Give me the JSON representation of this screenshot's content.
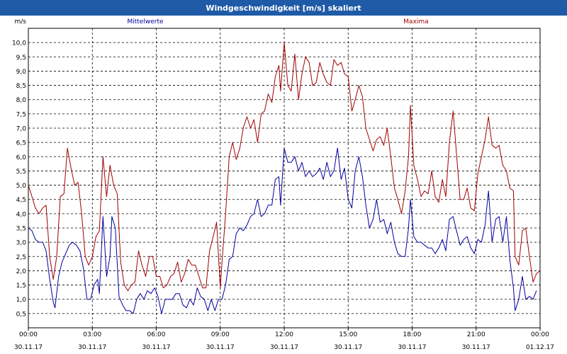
{
  "window": {
    "title": "Windgeschwindigkeit [m/s] skaliert"
  },
  "colors": {
    "titlebar": "#1f5aa6",
    "mean_series": "#0000a0",
    "max_series": "#a00000",
    "grid": "#000000",
    "text": "#000000"
  },
  "chart_data": {
    "type": "line",
    "title": "Windgeschwindigkeit [m/s] skaliert",
    "ylabel": "m/s",
    "xlabel": "",
    "ylim": [
      0,
      10.5
    ],
    "y_ticks": [
      "0,5",
      "1,0",
      "1,5",
      "2,0",
      "2,5",
      "3,0",
      "3,5",
      "4,0",
      "4,5",
      "5,0",
      "5,5",
      "6,0",
      "6,5",
      "7,0",
      "7,5",
      "8,0",
      "8,5",
      "9,0",
      "9,5",
      "10,0"
    ],
    "x_range_hours": [
      0,
      24
    ],
    "x_ticks": [
      {
        "time": "00:00",
        "date": "30.11.17"
      },
      {
        "time": "03:00",
        "date": "30.11.17"
      },
      {
        "time": "06:00",
        "date": "30.11.17"
      },
      {
        "time": "09:00",
        "date": "30.11.17"
      },
      {
        "time": "12:00",
        "date": "30.11.17"
      },
      {
        "time": "15:00",
        "date": "30.11.17"
      },
      {
        "time": "18:00",
        "date": "30.11.17"
      },
      {
        "time": "21:00",
        "date": "30.11.17"
      },
      {
        "time": "00:00",
        "date": "01.12.17"
      }
    ],
    "grid": true,
    "legend": "top",
    "series": [
      {
        "name": "Mittelwerte",
        "color": "#0000a0",
        "points": [
          [
            0,
            3.5
          ],
          [
            0.17,
            3.4
          ],
          [
            0.33,
            3.1
          ],
          [
            0.5,
            3.0
          ],
          [
            0.67,
            3.0
          ],
          [
            0.83,
            2.7
          ],
          [
            1.0,
            1.7
          ],
          [
            1.17,
            0.9
          ],
          [
            1.25,
            0.7
          ],
          [
            1.42,
            1.8
          ],
          [
            1.58,
            2.3
          ],
          [
            1.75,
            2.6
          ],
          [
            1.92,
            2.9
          ],
          [
            2.08,
            3.0
          ],
          [
            2.25,
            2.9
          ],
          [
            2.42,
            2.7
          ],
          [
            2.58,
            2.1
          ],
          [
            2.75,
            1.0
          ],
          [
            2.92,
            1.0
          ],
          [
            3.08,
            1.5
          ],
          [
            3.25,
            1.7
          ],
          [
            3.33,
            1.2
          ],
          [
            3.5,
            3.9
          ],
          [
            3.67,
            1.8
          ],
          [
            3.83,
            2.5
          ],
          [
            3.92,
            3.9
          ],
          [
            4.08,
            3.5
          ],
          [
            4.25,
            1.1
          ],
          [
            4.42,
            0.8
          ],
          [
            4.58,
            0.6
          ],
          [
            4.75,
            0.6
          ],
          [
            4.92,
            0.5
          ],
          [
            5.08,
            1.0
          ],
          [
            5.25,
            1.2
          ],
          [
            5.42,
            1.0
          ],
          [
            5.58,
            1.3
          ],
          [
            5.75,
            1.2
          ],
          [
            5.92,
            1.4
          ],
          [
            6.08,
            1.1
          ],
          [
            6.25,
            0.5
          ],
          [
            6.42,
            1.0
          ],
          [
            6.58,
            1.0
          ],
          [
            6.75,
            1.0
          ],
          [
            6.92,
            1.2
          ],
          [
            7.08,
            1.2
          ],
          [
            7.25,
            0.8
          ],
          [
            7.42,
            0.7
          ],
          [
            7.58,
            1.0
          ],
          [
            7.75,
            0.8
          ],
          [
            7.92,
            1.4
          ],
          [
            8.08,
            1.1
          ],
          [
            8.25,
            1.0
          ],
          [
            8.42,
            0.6
          ],
          [
            8.58,
            1.0
          ],
          [
            8.75,
            0.6
          ],
          [
            8.92,
            1.0
          ],
          [
            9.08,
            1.0
          ],
          [
            9.25,
            1.5
          ],
          [
            9.42,
            2.4
          ],
          [
            9.58,
            2.5
          ],
          [
            9.75,
            3.3
          ],
          [
            9.92,
            3.5
          ],
          [
            10.08,
            3.4
          ],
          [
            10.25,
            3.6
          ],
          [
            10.42,
            3.9
          ],
          [
            10.58,
            4.0
          ],
          [
            10.75,
            4.5
          ],
          [
            10.92,
            3.9
          ],
          [
            11.08,
            4.0
          ],
          [
            11.25,
            4.3
          ],
          [
            11.42,
            4.3
          ],
          [
            11.58,
            5.2
          ],
          [
            11.75,
            5.3
          ],
          [
            11.83,
            4.3
          ],
          [
            12.0,
            6.3
          ],
          [
            12.17,
            5.8
          ],
          [
            12.33,
            5.8
          ],
          [
            12.5,
            6.0
          ],
          [
            12.67,
            5.5
          ],
          [
            12.83,
            5.8
          ],
          [
            13.0,
            5.3
          ],
          [
            13.17,
            5.5
          ],
          [
            13.33,
            5.3
          ],
          [
            13.5,
            5.4
          ],
          [
            13.67,
            5.6
          ],
          [
            13.83,
            5.2
          ],
          [
            14.0,
            5.8
          ],
          [
            14.17,
            5.3
          ],
          [
            14.33,
            5.5
          ],
          [
            14.5,
            6.3
          ],
          [
            14.67,
            5.2
          ],
          [
            14.83,
            5.6
          ],
          [
            15.0,
            4.5
          ],
          [
            15.17,
            4.2
          ],
          [
            15.33,
            5.5
          ],
          [
            15.5,
            6.0
          ],
          [
            15.67,
            5.3
          ],
          [
            15.83,
            4.3
          ],
          [
            16.0,
            3.5
          ],
          [
            16.17,
            3.8
          ],
          [
            16.33,
            4.5
          ],
          [
            16.5,
            3.7
          ],
          [
            16.67,
            3.8
          ],
          [
            16.83,
            3.3
          ],
          [
            17.0,
            3.7
          ],
          [
            17.17,
            3.0
          ],
          [
            17.33,
            2.6
          ],
          [
            17.5,
            2.5
          ],
          [
            17.67,
            2.5
          ],
          [
            17.83,
            3.5
          ],
          [
            17.92,
            4.5
          ],
          [
            18.08,
            3.2
          ],
          [
            18.25,
            3.0
          ],
          [
            18.42,
            3.0
          ],
          [
            18.58,
            2.9
          ],
          [
            18.75,
            2.8
          ],
          [
            18.92,
            2.8
          ],
          [
            19.08,
            2.6
          ],
          [
            19.25,
            2.8
          ],
          [
            19.42,
            3.1
          ],
          [
            19.58,
            2.7
          ],
          [
            19.75,
            3.8
          ],
          [
            19.92,
            3.9
          ],
          [
            20.08,
            3.4
          ],
          [
            20.25,
            2.9
          ],
          [
            20.42,
            3.1
          ],
          [
            20.58,
            3.2
          ],
          [
            20.75,
            2.8
          ],
          [
            20.92,
            2.6
          ],
          [
            21.08,
            3.1
          ],
          [
            21.25,
            3.0
          ],
          [
            21.42,
            3.6
          ],
          [
            21.58,
            4.8
          ],
          [
            21.75,
            3.0
          ],
          [
            21.92,
            3.8
          ],
          [
            22.08,
            3.9
          ],
          [
            22.25,
            3.0
          ],
          [
            22.42,
            3.9
          ],
          [
            22.58,
            2.4
          ],
          [
            22.75,
            1.4
          ],
          [
            22.83,
            0.6
          ],
          [
            23.0,
            1.0
          ],
          [
            23.17,
            1.8
          ],
          [
            23.33,
            1.0
          ],
          [
            23.5,
            1.1
          ],
          [
            23.67,
            1.0
          ],
          [
            23.83,
            1.3
          ]
        ]
      },
      {
        "name": "Maxima",
        "color": "#a00000",
        "points": [
          [
            0,
            5.0
          ],
          [
            0.17,
            4.6
          ],
          [
            0.33,
            4.2
          ],
          [
            0.5,
            4.0
          ],
          [
            0.67,
            4.2
          ],
          [
            0.83,
            4.3
          ],
          [
            1.0,
            2.5
          ],
          [
            1.17,
            1.7
          ],
          [
            1.33,
            2.5
          ],
          [
            1.5,
            4.6
          ],
          [
            1.67,
            4.7
          ],
          [
            1.83,
            6.3
          ],
          [
            2.0,
            5.6
          ],
          [
            2.17,
            5.0
          ],
          [
            2.33,
            5.1
          ],
          [
            2.5,
            4.0
          ],
          [
            2.67,
            2.5
          ],
          [
            2.83,
            2.2
          ],
          [
            3.0,
            2.5
          ],
          [
            3.17,
            3.2
          ],
          [
            3.33,
            3.4
          ],
          [
            3.5,
            6.0
          ],
          [
            3.67,
            4.6
          ],
          [
            3.83,
            5.7
          ],
          [
            4.0,
            5.0
          ],
          [
            4.17,
            4.7
          ],
          [
            4.33,
            2.3
          ],
          [
            4.5,
            1.5
          ],
          [
            4.67,
            1.3
          ],
          [
            4.83,
            1.5
          ],
          [
            5.0,
            1.6
          ],
          [
            5.17,
            2.7
          ],
          [
            5.33,
            2.2
          ],
          [
            5.5,
            1.8
          ],
          [
            5.67,
            2.5
          ],
          [
            5.83,
            2.5
          ],
          [
            6.0,
            1.8
          ],
          [
            6.17,
            1.8
          ],
          [
            6.33,
            1.4
          ],
          [
            6.5,
            1.5
          ],
          [
            6.67,
            1.8
          ],
          [
            6.83,
            1.9
          ],
          [
            7.0,
            2.3
          ],
          [
            7.17,
            1.6
          ],
          [
            7.33,
            1.9
          ],
          [
            7.5,
            2.4
          ],
          [
            7.67,
            2.2
          ],
          [
            7.83,
            2.2
          ],
          [
            8.0,
            1.8
          ],
          [
            8.17,
            1.4
          ],
          [
            8.33,
            1.4
          ],
          [
            8.5,
            2.7
          ],
          [
            8.67,
            3.2
          ],
          [
            8.83,
            3.7
          ],
          [
            9.0,
            1.4
          ],
          [
            9.08,
            2.3
          ],
          [
            9.25,
            4.0
          ],
          [
            9.42,
            6.0
          ],
          [
            9.58,
            6.5
          ],
          [
            9.75,
            5.9
          ],
          [
            9.92,
            6.3
          ],
          [
            10.08,
            7.0
          ],
          [
            10.25,
            7.4
          ],
          [
            10.42,
            7.0
          ],
          [
            10.58,
            7.3
          ],
          [
            10.75,
            6.5
          ],
          [
            10.92,
            7.5
          ],
          [
            11.08,
            7.6
          ],
          [
            11.25,
            8.2
          ],
          [
            11.42,
            7.9
          ],
          [
            11.58,
            8.8
          ],
          [
            11.75,
            9.2
          ],
          [
            11.83,
            8.3
          ],
          [
            12.0,
            10.0
          ],
          [
            12.17,
            8.5
          ],
          [
            12.33,
            8.3
          ],
          [
            12.5,
            9.6
          ],
          [
            12.67,
            8.0
          ],
          [
            12.83,
            8.9
          ],
          [
            13.0,
            9.5
          ],
          [
            13.17,
            9.3
          ],
          [
            13.33,
            8.5
          ],
          [
            13.5,
            8.6
          ],
          [
            13.67,
            9.3
          ],
          [
            13.83,
            8.9
          ],
          [
            14.0,
            8.6
          ],
          [
            14.17,
            8.5
          ],
          [
            14.33,
            9.4
          ],
          [
            14.5,
            9.2
          ],
          [
            14.67,
            9.3
          ],
          [
            14.83,
            8.9
          ],
          [
            15.0,
            8.8
          ],
          [
            15.17,
            7.6
          ],
          [
            15.33,
            8.0
          ],
          [
            15.5,
            8.5
          ],
          [
            15.67,
            8.1
          ],
          [
            15.83,
            7.0
          ],
          [
            16.0,
            6.6
          ],
          [
            16.17,
            6.2
          ],
          [
            16.33,
            6.6
          ],
          [
            16.5,
            6.7
          ],
          [
            16.67,
            6.4
          ],
          [
            16.83,
            7.0
          ],
          [
            17.0,
            6.0
          ],
          [
            17.17,
            4.9
          ],
          [
            17.33,
            4.5
          ],
          [
            17.5,
            4.0
          ],
          [
            17.67,
            4.8
          ],
          [
            17.83,
            6.0
          ],
          [
            17.92,
            7.8
          ],
          [
            18.08,
            5.7
          ],
          [
            18.25,
            5.2
          ],
          [
            18.42,
            4.6
          ],
          [
            18.58,
            4.8
          ],
          [
            18.75,
            4.7
          ],
          [
            18.92,
            5.5
          ],
          [
            19.08,
            4.6
          ],
          [
            19.25,
            4.4
          ],
          [
            19.42,
            5.2
          ],
          [
            19.58,
            4.6
          ],
          [
            19.75,
            6.5
          ],
          [
            19.92,
            7.6
          ],
          [
            20.08,
            6.1
          ],
          [
            20.25,
            4.5
          ],
          [
            20.42,
            4.5
          ],
          [
            20.58,
            4.9
          ],
          [
            20.75,
            4.2
          ],
          [
            20.92,
            4.1
          ],
          [
            21.08,
            5.4
          ],
          [
            21.25,
            6.0
          ],
          [
            21.42,
            6.6
          ],
          [
            21.58,
            7.4
          ],
          [
            21.75,
            6.4
          ],
          [
            21.92,
            6.3
          ],
          [
            22.08,
            6.4
          ],
          [
            22.25,
            5.7
          ],
          [
            22.42,
            5.5
          ],
          [
            22.58,
            4.9
          ],
          [
            22.75,
            4.8
          ],
          [
            22.83,
            2.5
          ],
          [
            23.0,
            2.2
          ],
          [
            23.17,
            3.4
          ],
          [
            23.33,
            3.5
          ],
          [
            23.5,
            2.5
          ],
          [
            23.67,
            1.6
          ],
          [
            23.83,
            1.9
          ],
          [
            24.0,
            2.0
          ]
        ]
      }
    ]
  }
}
